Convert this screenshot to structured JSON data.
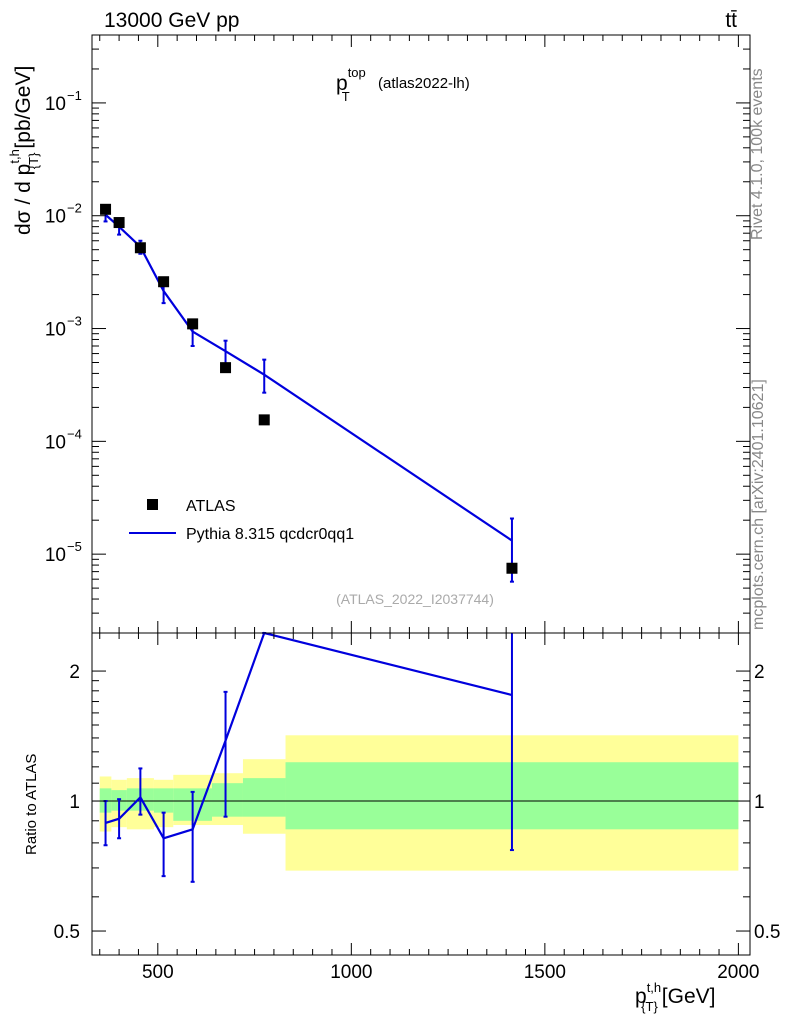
{
  "header": {
    "energy_label": "13000 GeV pp",
    "process_label": "tt̄"
  },
  "side_labels": {
    "rivet": "Rivet 4.1.0,  100k events",
    "mcplots": "mcplots.cern.ch [arXiv:2401.10621]"
  },
  "chart_data": [
    {
      "type": "scatter",
      "panel": "main",
      "title_main": "p",
      "title_sup": "top",
      "title_sub": "T",
      "title_suffix": "(atlas2022-lh)",
      "analysis_id": "(ATLAS_2022_I2037744)",
      "ylabel": "dσ / d p",
      "ylabel_sup": "t,h",
      "ylabel_sub": "{T}",
      "ylabel_unit": "[pb/GeV]",
      "yscale": "log",
      "ylim": [
        2e-06,
        0.4
      ],
      "xlim": [
        330,
        2030
      ],
      "y_ticks": [
        {
          "value": 0.1,
          "base": "10",
          "exp": "−1"
        },
        {
          "value": 0.01,
          "base": "10",
          "exp": "−2"
        },
        {
          "value": 0.001,
          "base": "10",
          "exp": "−3"
        },
        {
          "value": 0.0001,
          "base": "10",
          "exp": "−4"
        },
        {
          "value": 1e-05,
          "base": "10",
          "exp": "−5"
        }
      ],
      "legend": [
        {
          "label": "ATLAS",
          "style": "marker",
          "color": "#000000"
        },
        {
          "label": "Pythia 8.315 qcdcr0qq1",
          "style": "line",
          "color": "#0000dd"
        }
      ],
      "series": [
        {
          "name": "ATLAS",
          "x": [
            365,
            400,
            455,
            515,
            590,
            675,
            775,
            1415
          ],
          "y": [
            0.0114,
            0.0087,
            0.0052,
            0.0026,
            0.0011,
            0.00045,
            0.000155,
            7.5e-06
          ]
        },
        {
          "name": "Pythia 8.315 qcdcr0qq1",
          "x": [
            365,
            400,
            455,
            515,
            590,
            675,
            775,
            1415
          ],
          "y": [
            0.0102,
            0.008,
            0.0053,
            0.00215,
            0.00094,
            0.00063,
            0.00039,
            1.32e-05
          ],
          "err_lo": [
            0.0089,
            0.0068,
            0.0046,
            0.00168,
            0.0007,
            0.00043,
            0.00027,
            5.7e-06
          ],
          "err_hi": [
            0.0116,
            0.0093,
            0.006,
            0.00262,
            0.00118,
            0.00078,
            0.00053,
            2.07e-05
          ]
        }
      ]
    },
    {
      "type": "line",
      "panel": "ratio",
      "ylabel": "Ratio to ATLAS",
      "yscale": "log",
      "ylim": [
        0.44,
        2.45
      ],
      "xlim": [
        330,
        2030
      ],
      "xlabel": "p",
      "xlabel_sup": "t,h",
      "xlabel_sub": "{T}",
      "xlabel_unit": "[GeV]",
      "x_ticks": [
        "500",
        "1000",
        "1500",
        "2000"
      ],
      "y_ticks": [
        "0.5",
        "1",
        "2"
      ],
      "bands": {
        "edges": [
          350,
          380,
          420,
          490,
          540,
          640,
          720,
          830,
          2000
        ],
        "yellow_lo": [
          0.85,
          0.87,
          0.86,
          0.87,
          0.88,
          0.88,
          0.84,
          0.69
        ],
        "yellow_hi": [
          1.14,
          1.12,
          1.13,
          1.12,
          1.15,
          1.16,
          1.25,
          1.42
        ],
        "green_lo": [
          0.94,
          0.95,
          0.95,
          0.94,
          0.9,
          0.92,
          0.92,
          0.86
        ],
        "green_hi": [
          1.07,
          1.06,
          1.07,
          1.07,
          1.07,
          1.1,
          1.13,
          1.23
        ]
      },
      "series": [
        {
          "name": "Pythia 8.315 qcdcr0qq1",
          "x": [
            365,
            400,
            455,
            515,
            590,
            675,
            775,
            1415
          ],
          "y": [
            0.89,
            0.91,
            1.02,
            0.82,
            0.86,
            1.38,
            2.45,
            1.76
          ],
          "err_lo": [
            0.79,
            0.82,
            0.93,
            0.67,
            0.65,
            0.92,
            2.45,
            0.77
          ],
          "err_hi": [
            1.0,
            1.01,
            1.19,
            0.94,
            1.05,
            1.79,
            2.45,
            2.45
          ]
        }
      ]
    }
  ]
}
